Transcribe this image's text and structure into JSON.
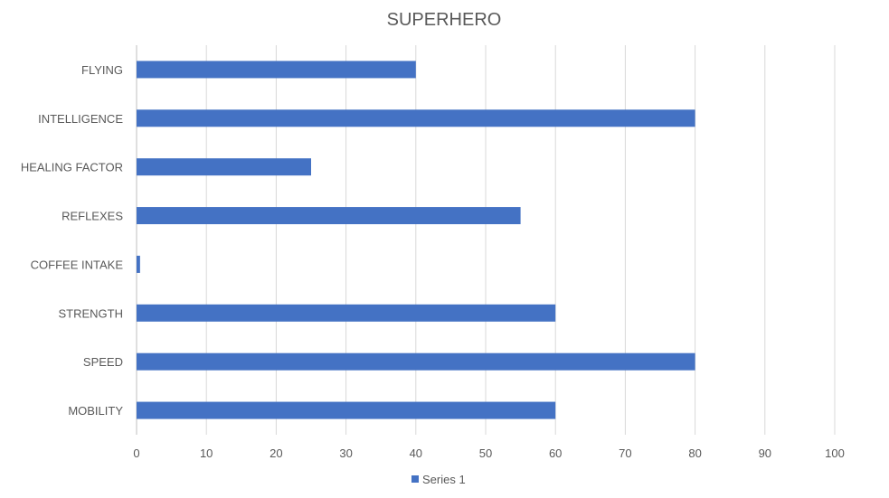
{
  "chart_data": {
    "type": "bar",
    "orientation": "horizontal",
    "title": "SUPERHERO",
    "xlabel": "",
    "ylabel": "",
    "categories": [
      "FLYING",
      "INTELLIGENCE",
      "HEALING FACTOR",
      "REFLEXES",
      "COFFEE INTAKE",
      "STRENGTH",
      "SPEED",
      "MOBILITY"
    ],
    "series": [
      {
        "name": "Series 1",
        "values": [
          40,
          80,
          25,
          55,
          0.5,
          60,
          80,
          60
        ],
        "color": "#4472C4"
      }
    ],
    "xlim": [
      0,
      100
    ],
    "xticks": [
      "0",
      "10",
      "20",
      "30",
      "40",
      "50",
      "60",
      "70",
      "80",
      "90",
      "100"
    ],
    "grid": "vertical",
    "legend_position": "bottom"
  }
}
